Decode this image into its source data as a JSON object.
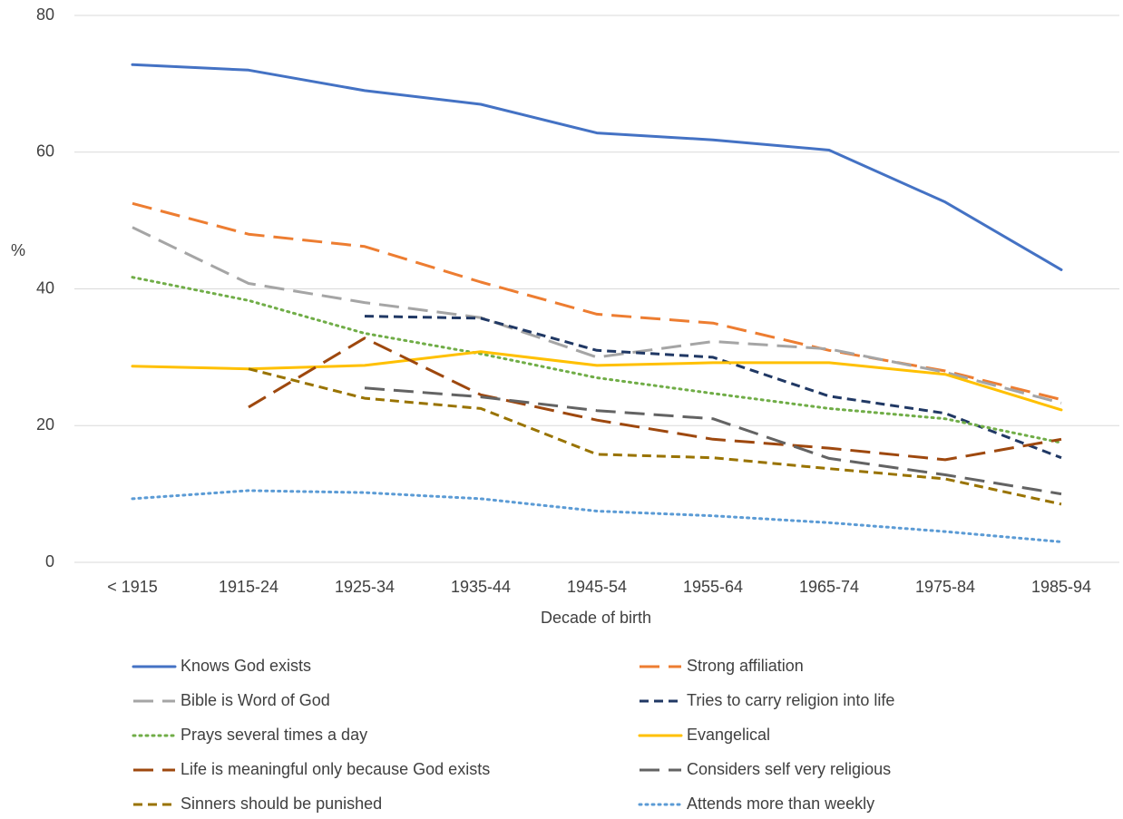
{
  "chart_data": {
    "type": "line",
    "title": "",
    "xlabel": "Decade of birth",
    "ylabel": "%",
    "ylim": [
      0,
      80
    ],
    "yticks": [
      0,
      20,
      40,
      60,
      80
    ],
    "grid": "horizontal",
    "legend_position": "bottom",
    "categories": [
      "< 1915",
      "1915-24",
      "1925-34",
      "1935-44",
      "1945-54",
      "1955-64",
      "1965-74",
      "1975-84",
      "1985-94"
    ],
    "series": [
      {
        "name": "Knows God exists",
        "color": "#4472C4",
        "dash": "solid",
        "values": [
          72.8,
          72.0,
          69.0,
          67.0,
          62.8,
          61.8,
          60.3,
          52.7,
          42.8
        ]
      },
      {
        "name": "Strong affiliation",
        "color": "#ED7D31",
        "dash": "long-dash",
        "values": [
          52.5,
          48.0,
          46.2,
          41.0,
          36.3,
          35.0,
          31.0,
          28.0,
          23.8
        ]
      },
      {
        "name": "Bible is Word of God",
        "color": "#A5A5A5",
        "dash": "long-dash",
        "values": [
          49.0,
          40.8,
          38.0,
          35.8,
          30.0,
          32.3,
          31.2,
          27.8,
          23.3
        ]
      },
      {
        "name": "Tries to carry religion into life",
        "color": "#203864",
        "dash": "dash",
        "values": [
          null,
          null,
          36.0,
          35.7,
          31.0,
          30.0,
          24.3,
          21.8,
          15.3
        ]
      },
      {
        "name": "Prays several times a day",
        "color": "#70AD47",
        "dash": "dot",
        "values": [
          41.7,
          38.3,
          33.5,
          30.5,
          27.0,
          24.7,
          22.5,
          21.0,
          17.5
        ]
      },
      {
        "name": "Evangelical",
        "color": "#FFC000",
        "dash": "solid",
        "values": [
          28.7,
          28.3,
          28.8,
          30.8,
          28.8,
          29.2,
          29.2,
          27.5,
          22.3
        ]
      },
      {
        "name": "Life is meaningful only because God exists",
        "color": "#9E480E",
        "dash": "long-dash",
        "values": [
          null,
          22.7,
          32.8,
          24.5,
          20.8,
          18.0,
          16.7,
          15.0,
          18.0
        ]
      },
      {
        "name": "Considers self very religious",
        "color": "#636363",
        "dash": "long-dash",
        "values": [
          null,
          null,
          25.5,
          24.2,
          22.2,
          21.0,
          15.2,
          12.8,
          10.0
        ]
      },
      {
        "name": "Sinners should be punished",
        "color": "#997300",
        "dash": "dash",
        "values": [
          null,
          28.3,
          24.0,
          22.5,
          15.8,
          15.3,
          13.7,
          12.2,
          8.5
        ]
      },
      {
        "name": "Attends more than weekly",
        "color": "#5B9BD5",
        "dash": "dot",
        "values": [
          9.3,
          10.5,
          10.2,
          9.3,
          7.5,
          6.8,
          5.8,
          4.5,
          3.0
        ]
      }
    ]
  }
}
